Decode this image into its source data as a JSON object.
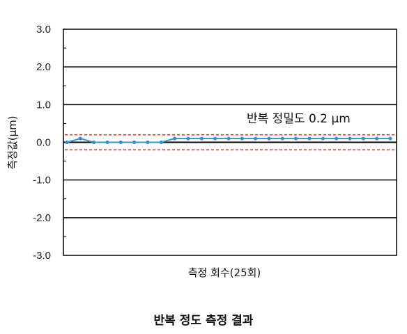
{
  "chart_data": {
    "type": "line",
    "title": "반복 정도 측정 결과",
    "xlabel": "측정 회수(25회)",
    "ylabel": "측정값(μm)",
    "ylim": [
      -3.0,
      3.0
    ],
    "yticks": [
      "3.0",
      "2.0",
      "1.0",
      "0.0",
      "-1.0",
      "-2.0",
      "-3.0"
    ],
    "x": [
      1,
      2,
      3,
      4,
      5,
      6,
      7,
      8,
      9,
      10,
      11,
      12,
      13,
      14,
      15,
      16,
      17,
      18,
      19,
      20,
      21,
      22,
      23,
      24,
      25
    ],
    "series": [
      {
        "values": [
          0.0,
          0.1,
          0.0,
          0.0,
          0.0,
          0.0,
          0.0,
          0.0,
          0.1,
          0.1,
          0.1,
          0.1,
          0.1,
          0.1,
          0.1,
          0.1,
          0.1,
          0.1,
          0.1,
          0.1,
          0.1,
          0.1,
          0.1,
          0.1,
          0.1
        ],
        "color": "#3a8fd0"
      }
    ],
    "limit_lines": {
      "upper": 0.2,
      "lower": -0.2,
      "color": "#e23b2e"
    },
    "annotation": "반복 정밀도 0.2 μm",
    "grid": true
  }
}
